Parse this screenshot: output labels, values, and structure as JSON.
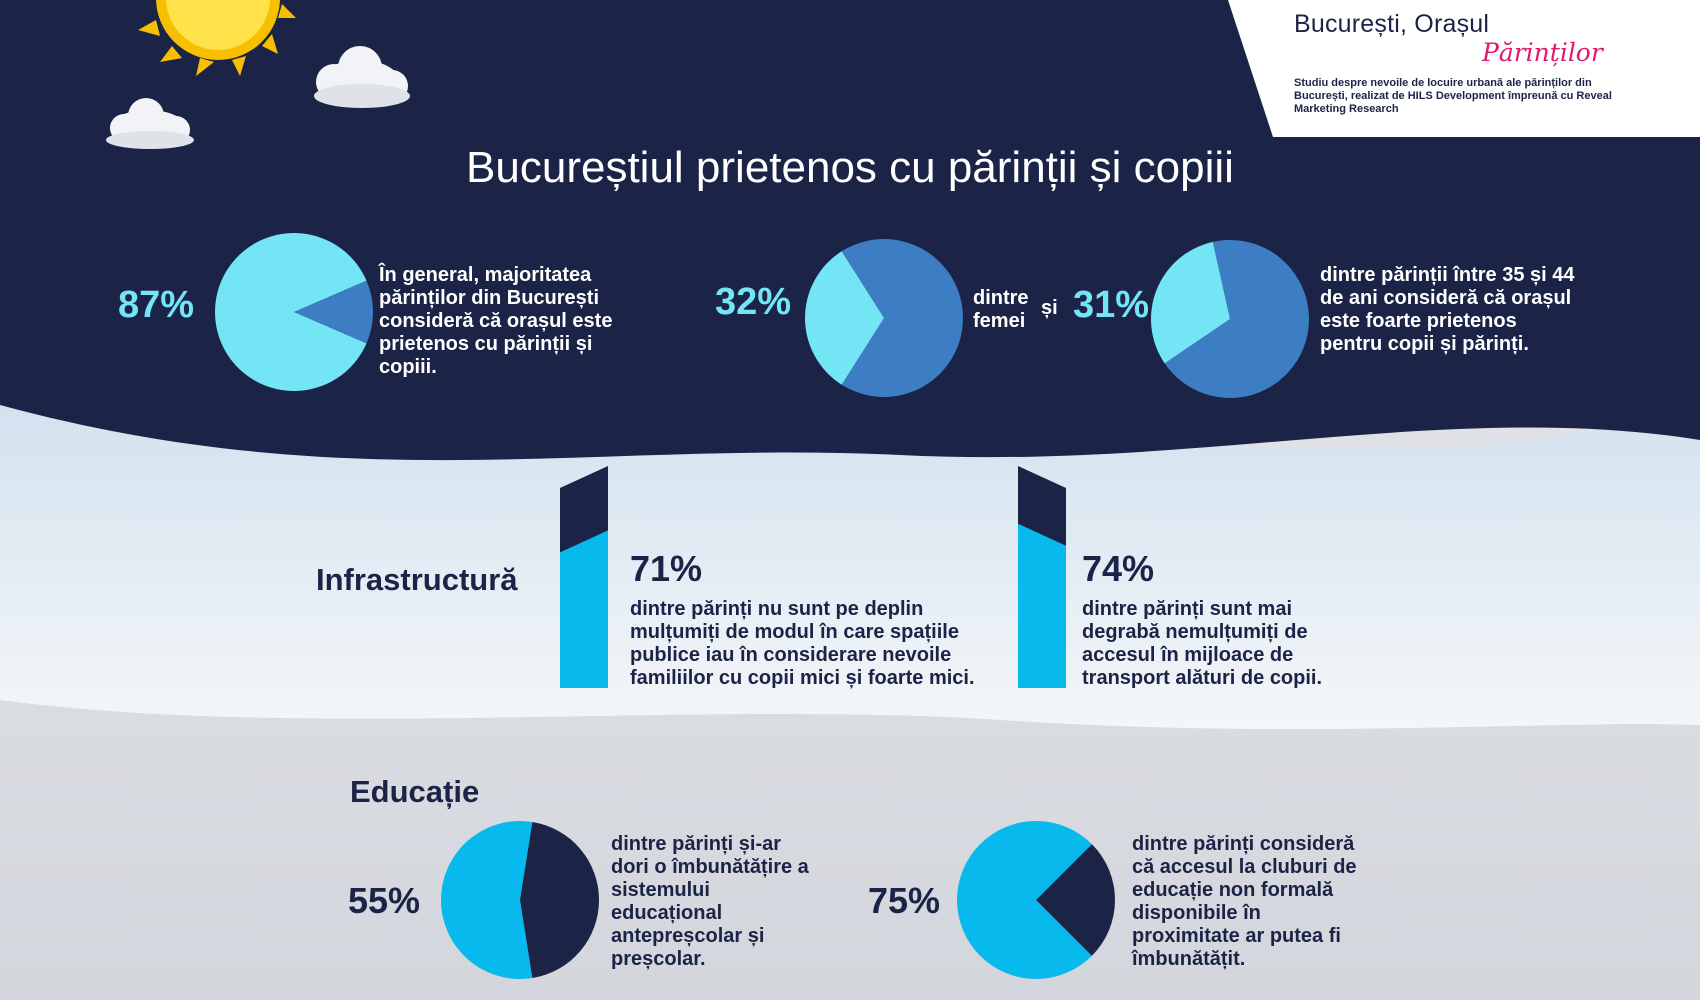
{
  "brand": {
    "title": "București, Orașul",
    "script": "Părinților",
    "subtitle": "Studiu despre nevoile de locuire urbană ale părinților din București, realizat de HILS Development împreună cu Reveal Marketing Research"
  },
  "main_title": "Bucureștiul prietenos cu părinții și copiii",
  "top": {
    "stat1": {
      "label": "87%",
      "text": "În general, majoritatea părinților din București consideră că orașul este prietenos cu părinții și copiii."
    },
    "stat2": {
      "label": "32%",
      "text": "dintre femei"
    },
    "connector": "și",
    "stat3": {
      "label": "31%",
      "text": "dintre părinții între 35 și 44 de ani consideră că orașul este foarte prietenos pentru copii și părinți."
    }
  },
  "infrastructure": {
    "title": "Infrastructură",
    "stat1": {
      "label": "71%",
      "text": "dintre părinți nu sunt pe deplin mulțumiți de modul în care spațiile publice iau în considerare nevoile familiilor cu copii mici și foarte mici."
    },
    "stat2": {
      "label": "74%",
      "text": "dintre părinți sunt mai degrabă nemulțumiți de accesul în mijloace de transport alături de copii."
    }
  },
  "education": {
    "title": "Educație",
    "stat1": {
      "label": "55%",
      "text": "dintre părinți și-ar dori o îmbunătățire a sistemului educațional antepreșcolar și preșcolar."
    },
    "stat2": {
      "label": "75%",
      "text": "dintre părinți consideră că accesul la cluburi de educație non formală disponibile în proximitate ar putea fi îmbunătățit."
    }
  },
  "colors": {
    "navy": "#1b2447",
    "light_cyan": "#74e5f5",
    "mid_blue": "#3c7dc4",
    "bright_blue": "#07b9ec",
    "pink": "#e2196b"
  },
  "chart_data": [
    {
      "type": "pie",
      "values": [
        87,
        13
      ]
    },
    {
      "type": "pie",
      "values": [
        32,
        68
      ]
    },
    {
      "type": "pie",
      "values": [
        31,
        69
      ]
    },
    {
      "type": "bar",
      "values": [
        71
      ]
    },
    {
      "type": "bar",
      "values": [
        74
      ]
    },
    {
      "type": "pie",
      "values": [
        55,
        45
      ]
    },
    {
      "type": "pie",
      "values": [
        75,
        25
      ]
    }
  ]
}
